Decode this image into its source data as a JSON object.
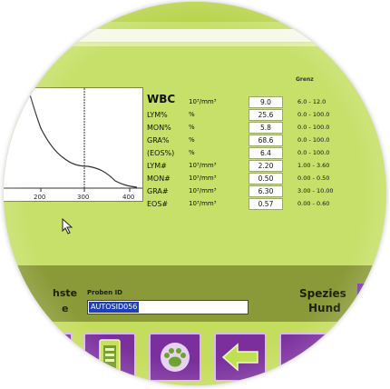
{
  "range_header": "Grenz",
  "params": [
    {
      "name": "WBC",
      "unit": "10³/mm³",
      "value": "9.0",
      "range": "6.0 - 12.0"
    },
    {
      "name": "LYM%",
      "unit": "%",
      "value": "25.6",
      "range": "0.0 - 100.0"
    },
    {
      "name": "MON%",
      "unit": "%",
      "value": "5.8",
      "range": "0.0 - 100.0"
    },
    {
      "name": "GRA%",
      "unit": "%",
      "value": "68.6",
      "range": "0.0 - 100.0"
    },
    {
      "name": "(EOS%)",
      "unit": "%",
      "value": "6.4",
      "range": "0.0 - 100.0"
    },
    {
      "name": "LYM#",
      "unit": "10³/mm³",
      "value": "2.20",
      "range": "1.00 - 3.60"
    },
    {
      "name": "MON#",
      "unit": "10³/mm³",
      "value": "0.50",
      "range": "0.00 - 0.50"
    },
    {
      "name": "GRA#",
      "unit": "10³/mm³",
      "value": "6.30",
      "range": "3.00 - 10.00"
    },
    {
      "name": "EOS#",
      "unit": "10³/mm³",
      "value": "0.57",
      "range": "0.00 - 0.60"
    }
  ],
  "chart": {
    "x_ticks": [
      "200",
      "300",
      "400"
    ]
  },
  "info": {
    "left_label_1": "hste",
    "left_label_2": "e",
    "proben_label": "Proben ID",
    "proben_value": "AUTOSID056",
    "spezies_label": "Spezies",
    "spezies_value": "Hund"
  },
  "colors": {
    "screen_green": "#c7e06a",
    "info_bar": "#8b9a38",
    "button_purple": "#7b2f9d",
    "selection_blue": "#1d3fb8"
  },
  "buttons": [
    {
      "icon": "purple-button-icon"
    },
    {
      "icon": "sample-tube-icon"
    },
    {
      "icon": "paw-icon"
    },
    {
      "icon": "back-arrow-icon"
    },
    {
      "icon": "next-icon"
    }
  ]
}
